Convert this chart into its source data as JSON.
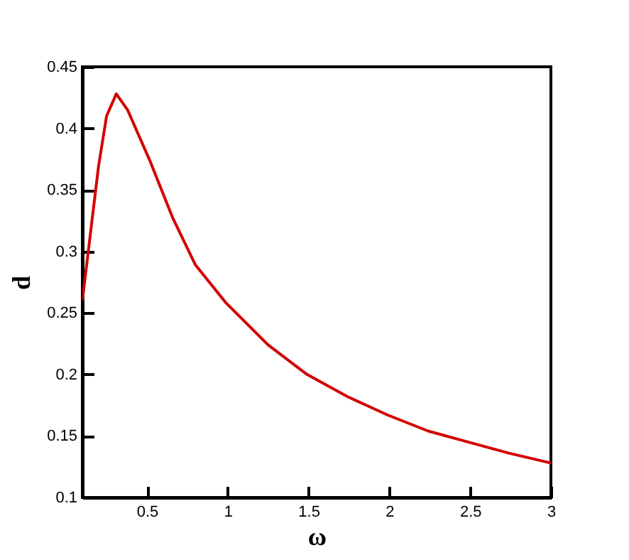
{
  "chart_data": {
    "type": "line",
    "xlabel": "ω",
    "ylabel": "d",
    "x": [
      0.1,
      0.2,
      0.25,
      0.31,
      0.38,
      0.52,
      0.66,
      0.8,
      0.99,
      1.25,
      1.49,
      1.74,
      1.99,
      2.24,
      2.49,
      2.74,
      3.0
    ],
    "series": [
      {
        "color": "#d40000",
        "values": [
          0.26,
          0.369,
          0.41,
          0.428,
          0.415,
          0.373,
          0.327,
          0.289,
          0.258,
          0.224,
          0.2,
          0.182,
          0.167,
          0.154,
          0.145,
          0.136,
          0.128
        ]
      }
    ],
    "xlim": [
      0.1,
      3
    ],
    "ylim": [
      0.1,
      0.45
    ],
    "xticks": [
      0.5,
      1,
      1.5,
      2,
      2.5,
      3
    ],
    "yticks": [
      0.1,
      0.15,
      0.2,
      0.25,
      0.3,
      0.35,
      0.4,
      0.45
    ],
    "grid": false,
    "line_style": "solid",
    "marker": "none"
  }
}
